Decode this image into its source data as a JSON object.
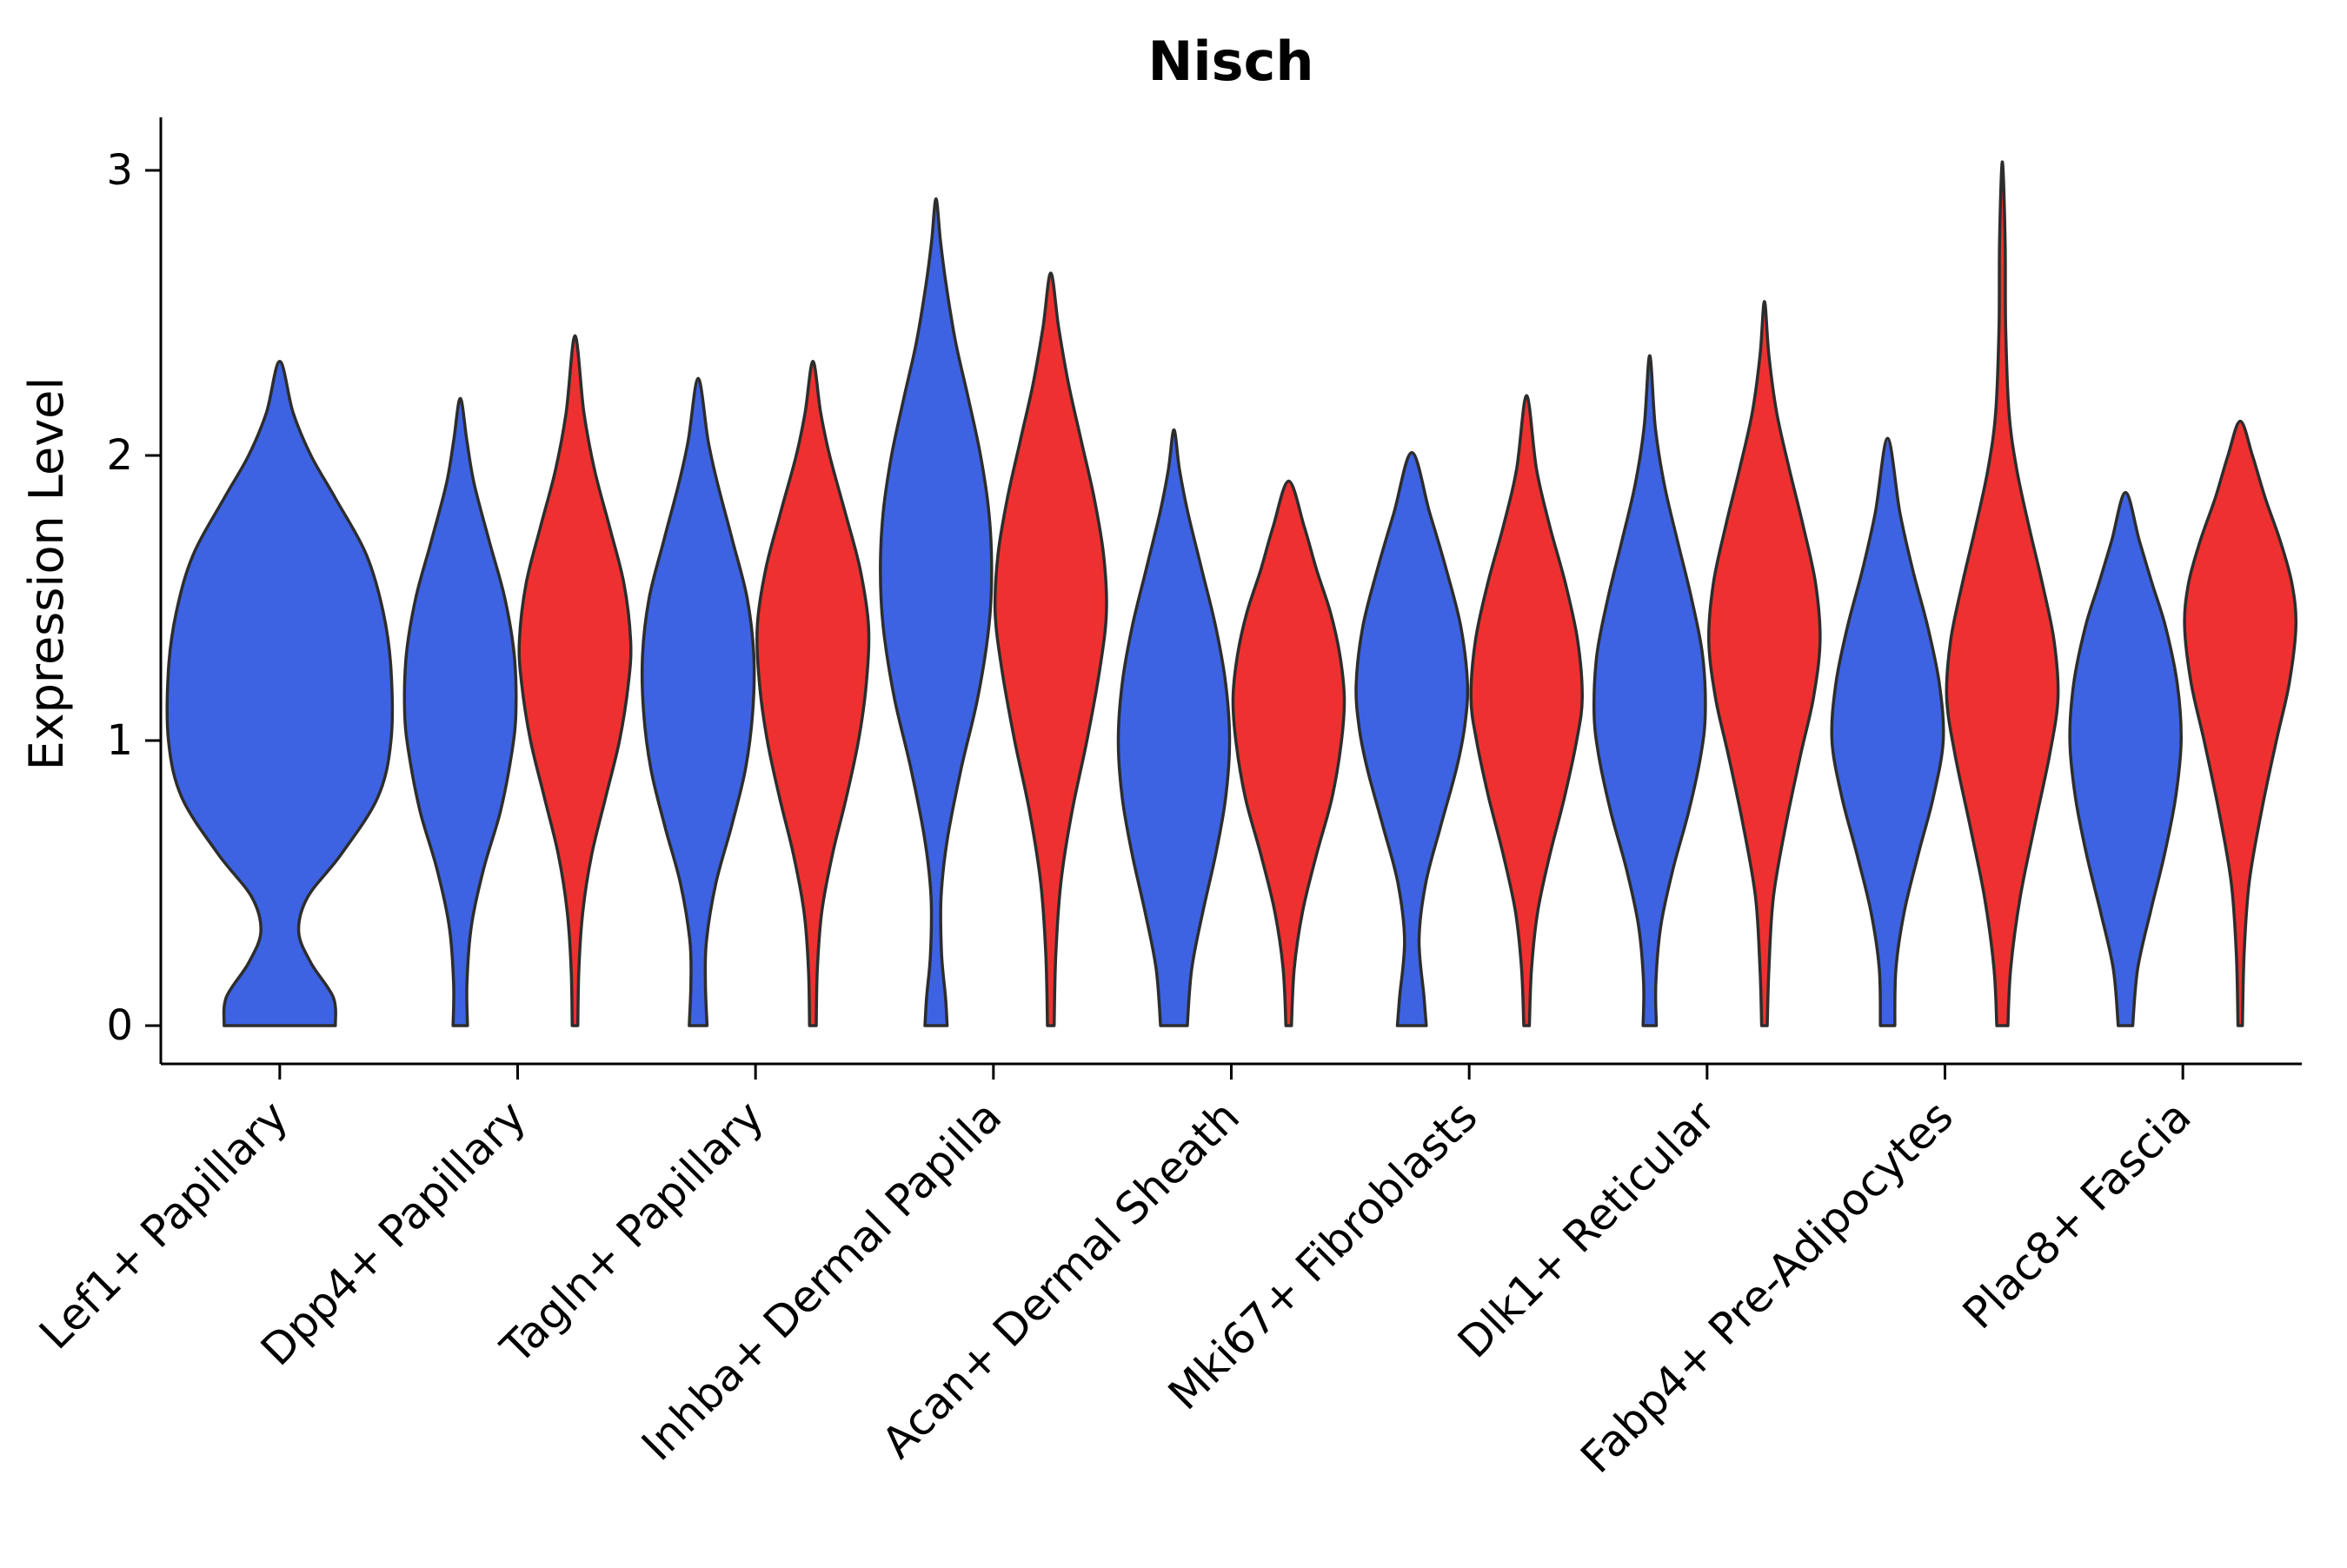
{
  "chart_data": {
    "type": "violin",
    "title": "Nisch",
    "xlabel": "",
    "ylabel": "Expression Level",
    "ylim": [
      0,
      3.05
    ],
    "yticks": [
      0,
      1,
      2,
      3
    ],
    "grid": false,
    "legend": "none",
    "colors": {
      "blue": "#3d63e3",
      "red": "#ee3130",
      "outline": "#2d2d2d"
    },
    "categories": [
      "Lef1+ Papillary",
      "Dpp4+ Papillary",
      "Tagln+ Papillary",
      "Inhba+ Dermal Papilla",
      "Acan+ Dermal Sheath",
      "Mki67+ Fibroblasts",
      "Dlk1+ Reticular",
      "Fabp4+ Pre-Adipocytes",
      "Plac8+ Fascia"
    ],
    "violins": [
      {
        "category": "Lef1+ Papillary",
        "color_key": "blue",
        "side": "center",
        "max_expression": 2.33,
        "profile": [
          [
            0,
            0.5
          ],
          [
            0.1,
            0.48
          ],
          [
            0.22,
            0.28
          ],
          [
            0.33,
            0.17
          ],
          [
            0.45,
            0.25
          ],
          [
            0.6,
            0.55
          ],
          [
            0.8,
            0.88
          ],
          [
            1.0,
            1.0
          ],
          [
            1.25,
            1.0
          ],
          [
            1.45,
            0.93
          ],
          [
            1.65,
            0.78
          ],
          [
            1.85,
            0.5
          ],
          [
            2.0,
            0.28
          ],
          [
            2.15,
            0.12
          ],
          [
            2.33,
            0
          ]
        ]
      },
      {
        "category": "Dpp4+ Papillary",
        "color_key": "blue",
        "side": "left",
        "max_expression": 2.2,
        "profile": [
          [
            0,
            0.13
          ],
          [
            0.15,
            0.12
          ],
          [
            0.35,
            0.2
          ],
          [
            0.55,
            0.42
          ],
          [
            0.75,
            0.72
          ],
          [
            0.95,
            0.92
          ],
          [
            1.1,
            1.0
          ],
          [
            1.3,
            0.97
          ],
          [
            1.5,
            0.8
          ],
          [
            1.7,
            0.52
          ],
          [
            1.9,
            0.25
          ],
          [
            2.05,
            0.12
          ],
          [
            2.2,
            0
          ]
        ]
      },
      {
        "category": "Dpp4+ Papillary",
        "color_key": "red",
        "side": "right",
        "max_expression": 2.42,
        "profile": [
          [
            0,
            0.05
          ],
          [
            0.2,
            0.07
          ],
          [
            0.4,
            0.14
          ],
          [
            0.6,
            0.3
          ],
          [
            0.8,
            0.55
          ],
          [
            1.0,
            0.8
          ],
          [
            1.2,
            0.96
          ],
          [
            1.35,
            1.0
          ],
          [
            1.55,
            0.88
          ],
          [
            1.75,
            0.62
          ],
          [
            1.95,
            0.35
          ],
          [
            2.15,
            0.16
          ],
          [
            2.42,
            0
          ]
        ]
      },
      {
        "category": "Tagln+ Papillary",
        "color_key": "blue",
        "side": "left",
        "max_expression": 2.27,
        "profile": [
          [
            0,
            0.16
          ],
          [
            0.15,
            0.13
          ],
          [
            0.3,
            0.15
          ],
          [
            0.5,
            0.32
          ],
          [
            0.7,
            0.6
          ],
          [
            0.9,
            0.85
          ],
          [
            1.1,
            0.98
          ],
          [
            1.3,
            1.0
          ],
          [
            1.5,
            0.88
          ],
          [
            1.7,
            0.62
          ],
          [
            1.9,
            0.35
          ],
          [
            2.05,
            0.18
          ],
          [
            2.27,
            0
          ]
        ]
      },
      {
        "category": "Tagln+ Papillary",
        "color_key": "red",
        "side": "right",
        "max_expression": 2.33,
        "profile": [
          [
            0,
            0.06
          ],
          [
            0.2,
            0.08
          ],
          [
            0.4,
            0.16
          ],
          [
            0.6,
            0.35
          ],
          [
            0.8,
            0.6
          ],
          [
            1.0,
            0.82
          ],
          [
            1.2,
            0.96
          ],
          [
            1.4,
            1.0
          ],
          [
            1.6,
            0.85
          ],
          [
            1.8,
            0.58
          ],
          [
            2.0,
            0.3
          ],
          [
            2.15,
            0.14
          ],
          [
            2.33,
            0
          ]
        ]
      },
      {
        "category": "Inhba+ Dermal Papilla",
        "color_key": "blue",
        "side": "left",
        "max_expression": 2.9,
        "profile": [
          [
            0,
            0.2
          ],
          [
            0.1,
            0.17
          ],
          [
            0.25,
            0.1
          ],
          [
            0.45,
            0.09
          ],
          [
            0.65,
            0.2
          ],
          [
            0.9,
            0.45
          ],
          [
            1.15,
            0.75
          ],
          [
            1.4,
            0.95
          ],
          [
            1.6,
            1.0
          ],
          [
            1.8,
            0.95
          ],
          [
            2.0,
            0.8
          ],
          [
            2.2,
            0.58
          ],
          [
            2.4,
            0.35
          ],
          [
            2.6,
            0.18
          ],
          [
            2.75,
            0.08
          ],
          [
            2.9,
            0
          ]
        ]
      },
      {
        "category": "Inhba+ Dermal Papilla",
        "color_key": "red",
        "side": "right",
        "max_expression": 2.64,
        "profile": [
          [
            0,
            0.06
          ],
          [
            0.25,
            0.09
          ],
          [
            0.5,
            0.18
          ],
          [
            0.75,
            0.38
          ],
          [
            1.0,
            0.65
          ],
          [
            1.25,
            0.88
          ],
          [
            1.45,
            1.0
          ],
          [
            1.65,
            0.95
          ],
          [
            1.85,
            0.78
          ],
          [
            2.05,
            0.55
          ],
          [
            2.25,
            0.32
          ],
          [
            2.45,
            0.14
          ],
          [
            2.64,
            0
          ]
        ]
      },
      {
        "category": "Acan+ Dermal Sheath",
        "color_key": "blue",
        "side": "left",
        "max_expression": 2.09,
        "profile": [
          [
            0,
            0.24
          ],
          [
            0.2,
            0.32
          ],
          [
            0.4,
            0.52
          ],
          [
            0.6,
            0.75
          ],
          [
            0.8,
            0.93
          ],
          [
            1.0,
            1.0
          ],
          [
            1.2,
            0.93
          ],
          [
            1.4,
            0.75
          ],
          [
            1.6,
            0.5
          ],
          [
            1.8,
            0.25
          ],
          [
            1.95,
            0.1
          ],
          [
            2.09,
            0
          ]
        ]
      },
      {
        "category": "Acan+ Dermal Sheath",
        "color_key": "red",
        "side": "right",
        "max_expression": 1.91,
        "profile": [
          [
            0,
            0.05
          ],
          [
            0.2,
            0.1
          ],
          [
            0.4,
            0.25
          ],
          [
            0.6,
            0.5
          ],
          [
            0.8,
            0.78
          ],
          [
            1.0,
            0.95
          ],
          [
            1.15,
            1.0
          ],
          [
            1.3,
            0.92
          ],
          [
            1.45,
            0.75
          ],
          [
            1.6,
            0.5
          ],
          [
            1.75,
            0.28
          ],
          [
            1.91,
            0
          ]
        ]
      },
      {
        "category": "Mki67+ Fibroblasts",
        "color_key": "blue",
        "side": "left",
        "max_expression": 2.01,
        "profile": [
          [
            0,
            0.26
          ],
          [
            0.1,
            0.22
          ],
          [
            0.3,
            0.13
          ],
          [
            0.5,
            0.25
          ],
          [
            0.7,
            0.52
          ],
          [
            0.9,
            0.8
          ],
          [
            1.05,
            0.95
          ],
          [
            1.2,
            1.0
          ],
          [
            1.4,
            0.88
          ],
          [
            1.6,
            0.62
          ],
          [
            1.8,
            0.32
          ],
          [
            2.01,
            0
          ]
        ]
      },
      {
        "category": "Mki67+ Fibroblasts",
        "color_key": "red",
        "side": "right",
        "max_expression": 2.21,
        "profile": [
          [
            0,
            0.05
          ],
          [
            0.2,
            0.09
          ],
          [
            0.4,
            0.2
          ],
          [
            0.6,
            0.42
          ],
          [
            0.8,
            0.68
          ],
          [
            1.0,
            0.9
          ],
          [
            1.15,
            1.0
          ],
          [
            1.35,
            0.92
          ],
          [
            1.55,
            0.7
          ],
          [
            1.75,
            0.42
          ],
          [
            1.95,
            0.18
          ],
          [
            2.21,
            0
          ]
        ]
      },
      {
        "category": "Dlk1+ Reticular",
        "color_key": "blue",
        "side": "left",
        "max_expression": 2.35,
        "profile": [
          [
            0,
            0.12
          ],
          [
            0.15,
            0.11
          ],
          [
            0.35,
            0.2
          ],
          [
            0.55,
            0.42
          ],
          [
            0.75,
            0.7
          ],
          [
            0.95,
            0.92
          ],
          [
            1.1,
            1.0
          ],
          [
            1.3,
            0.95
          ],
          [
            1.5,
            0.75
          ],
          [
            1.7,
            0.5
          ],
          [
            1.9,
            0.26
          ],
          [
            2.1,
            0.1
          ],
          [
            2.35,
            0
          ]
        ]
      },
      {
        "category": "Dlk1+ Reticular",
        "color_key": "red",
        "side": "right",
        "max_expression": 2.54,
        "profile": [
          [
            0,
            0.05
          ],
          [
            0.2,
            0.08
          ],
          [
            0.45,
            0.16
          ],
          [
            0.7,
            0.38
          ],
          [
            0.95,
            0.65
          ],
          [
            1.15,
            0.88
          ],
          [
            1.35,
            1.0
          ],
          [
            1.55,
            0.92
          ],
          [
            1.75,
            0.7
          ],
          [
            1.95,
            0.45
          ],
          [
            2.15,
            0.22
          ],
          [
            2.35,
            0.08
          ],
          [
            2.54,
            0
          ]
        ]
      },
      {
        "category": "Fabp4+ Pre-Adipocytes",
        "color_key": "blue",
        "side": "left",
        "max_expression": 2.06,
        "profile": [
          [
            0,
            0.13
          ],
          [
            0.2,
            0.15
          ],
          [
            0.4,
            0.3
          ],
          [
            0.6,
            0.55
          ],
          [
            0.8,
            0.82
          ],
          [
            1.0,
            1.0
          ],
          [
            1.2,
            0.93
          ],
          [
            1.4,
            0.72
          ],
          [
            1.6,
            0.45
          ],
          [
            1.8,
            0.22
          ],
          [
            2.06,
            0
          ]
        ]
      },
      {
        "category": "Fabp4+ Pre-Adipocytes",
        "color_key": "red",
        "side": "right",
        "max_expression": 3.03,
        "profile": [
          [
            0,
            0.1
          ],
          [
            0.2,
            0.15
          ],
          [
            0.45,
            0.32
          ],
          [
            0.7,
            0.58
          ],
          [
            0.95,
            0.85
          ],
          [
            1.15,
            1.0
          ],
          [
            1.35,
            0.93
          ],
          [
            1.55,
            0.72
          ],
          [
            1.75,
            0.48
          ],
          [
            1.95,
            0.26
          ],
          [
            2.15,
            0.12
          ],
          [
            2.45,
            0.06
          ],
          [
            2.75,
            0.05
          ],
          [
            3.03,
            0
          ]
        ]
      },
      {
        "category": "Plac8+ Fascia",
        "color_key": "blue",
        "side": "left",
        "max_expression": 1.87,
        "profile": [
          [
            0,
            0.13
          ],
          [
            0.2,
            0.22
          ],
          [
            0.4,
            0.45
          ],
          [
            0.6,
            0.7
          ],
          [
            0.8,
            0.9
          ],
          [
            1.0,
            1.0
          ],
          [
            1.2,
            0.93
          ],
          [
            1.4,
            0.72
          ],
          [
            1.55,
            0.48
          ],
          [
            1.7,
            0.25
          ],
          [
            1.87,
            0
          ]
        ]
      },
      {
        "category": "Plac8+ Fascia",
        "color_key": "red",
        "side": "right",
        "max_expression": 2.12,
        "profile": [
          [
            0,
            0.04
          ],
          [
            0.25,
            0.07
          ],
          [
            0.5,
            0.16
          ],
          [
            0.75,
            0.38
          ],
          [
            1.0,
            0.65
          ],
          [
            1.2,
            0.88
          ],
          [
            1.4,
            1.0
          ],
          [
            1.55,
            0.93
          ],
          [
            1.7,
            0.72
          ],
          [
            1.85,
            0.45
          ],
          [
            2.0,
            0.22
          ],
          [
            2.12,
            0
          ]
        ]
      }
    ]
  }
}
